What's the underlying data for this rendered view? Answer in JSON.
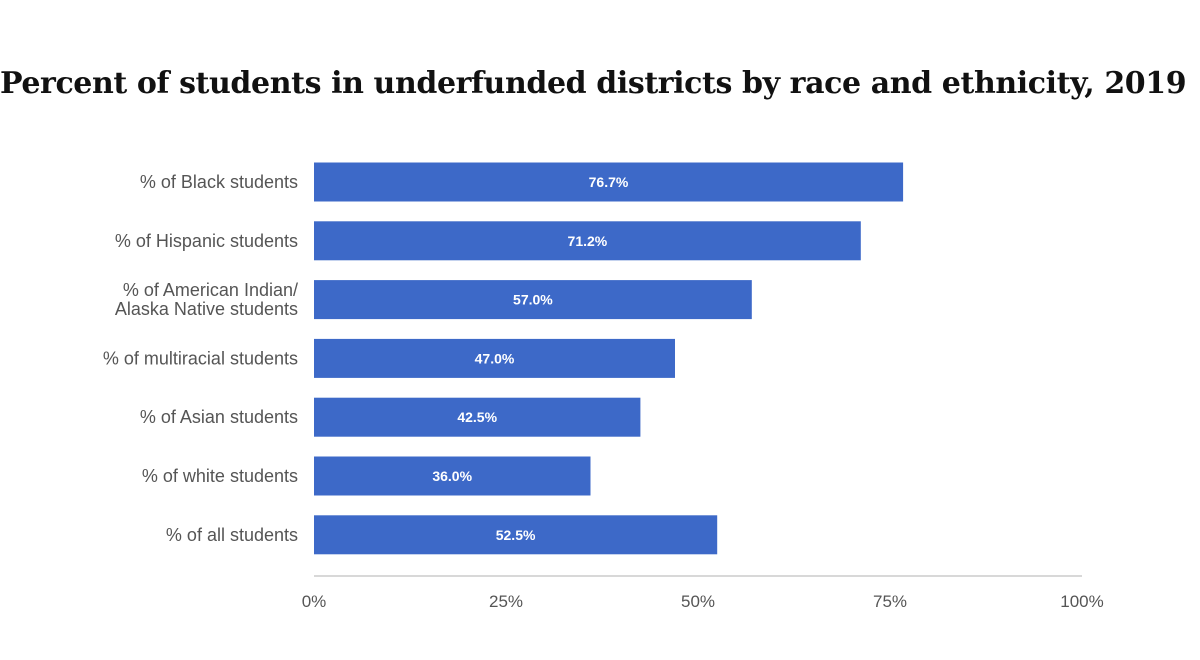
{
  "chart_data": {
    "type": "bar",
    "orientation": "horizontal",
    "title": "Percent of students in underfunded districts by race and ethnicity, 2019",
    "categories": [
      "% of Black students",
      "% of Hispanic students",
      "% of American Indian/ Alaska Native students",
      "% of multiracial students",
      "% of Asian students",
      "% of white students",
      "% of all students"
    ],
    "category_lines": [
      [
        "% of Black students"
      ],
      [
        "% of Hispanic students"
      ],
      [
        "% of American Indian/",
        "Alaska Native students"
      ],
      [
        "% of multiracial students"
      ],
      [
        "% of Asian students"
      ],
      [
        "% of white students"
      ],
      [
        "% of all students"
      ]
    ],
    "values": [
      76.7,
      71.2,
      57.0,
      47.0,
      42.5,
      36.0,
      52.5
    ],
    "value_labels": [
      "76.7%",
      "71.2%",
      "57.0%",
      "47.0%",
      "42.5%",
      "36.0%",
      "52.5%"
    ],
    "xlim": [
      0,
      100
    ],
    "x_ticks": [
      0,
      25,
      50,
      75,
      100
    ],
    "x_tick_labels": [
      "0%",
      "25%",
      "50%",
      "75%",
      "100%"
    ],
    "bar_color": "#3d69c8",
    "grid": false,
    "legend": "none"
  }
}
